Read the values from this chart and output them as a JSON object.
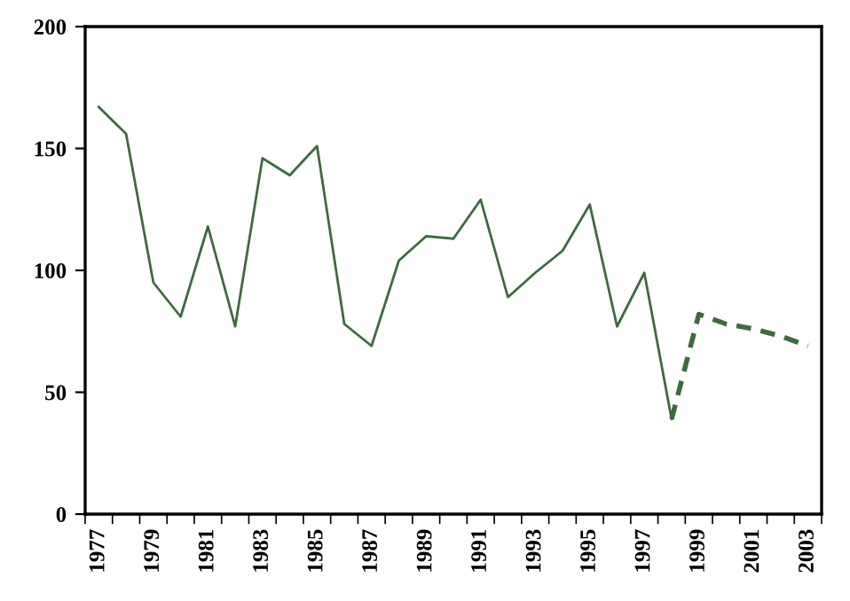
{
  "chart_data": {
    "type": "line",
    "categories": [
      "1977",
      null,
      "1979",
      null,
      "1981",
      null,
      "1983",
      null,
      "1985",
      null,
      "1987",
      null,
      "1989",
      null,
      "1991",
      null,
      "1993",
      null,
      "1995",
      null,
      "1997",
      null,
      "1999",
      null,
      "2001",
      null,
      "2003"
    ],
    "series": [
      {
        "color": "#3d6b3d",
        "line_style": "solid",
        "values": [
          167,
          156,
          95,
          81,
          118,
          77,
          146,
          139,
          151,
          78,
          69,
          104,
          114,
          113,
          129,
          89,
          99,
          108,
          127,
          77,
          99,
          39,
          null,
          null,
          null,
          null,
          null
        ]
      },
      {
        "color": "#3d6b3d",
        "line_style": "dashed",
        "values": [
          null,
          null,
          null,
          null,
          null,
          null,
          null,
          null,
          null,
          null,
          null,
          null,
          null,
          null,
          null,
          null,
          null,
          null,
          null,
          null,
          null,
          39,
          82,
          78,
          76,
          73,
          69
        ]
      }
    ],
    "ylim": [
      0,
      200
    ],
    "yticks": [
      0,
      50,
      100,
      150,
      200
    ],
    "grid": false,
    "legend": false,
    "marker": "none"
  }
}
